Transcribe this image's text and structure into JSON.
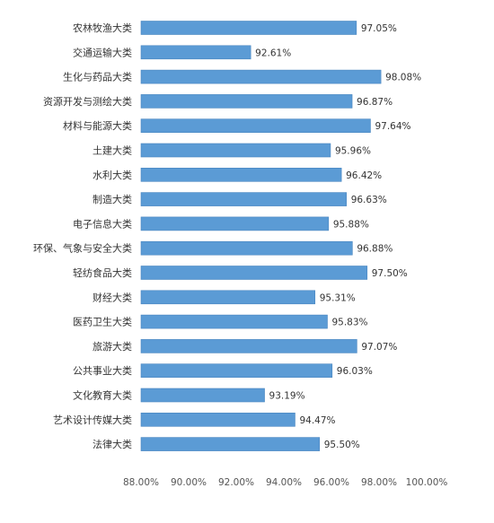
{
  "chart_data": {
    "type": "bar",
    "orientation": "horizontal",
    "categories": [
      "农林牧渔大类",
      "交通运输大类",
      "生化与药品大类",
      "资源开发与测绘大类",
      "材料与能源大类",
      "土建大类",
      "水利大类",
      "制造大类",
      "电子信息大类",
      "环保、气象与安全大类",
      "轻纺食品大类",
      "财经大类",
      "医药卫生大类",
      "旅游大类",
      "公共事业大类",
      "文化教育大类",
      "艺术设计传媒大类",
      "法律大类"
    ],
    "values": [
      97.05,
      92.61,
      98.08,
      96.87,
      97.64,
      95.96,
      96.42,
      96.63,
      95.88,
      96.88,
      97.5,
      95.31,
      95.83,
      97.07,
      96.03,
      93.19,
      94.47,
      95.5
    ],
    "value_labels": [
      "97.05%",
      "92.61%",
      "98.08%",
      "96.87%",
      "97.64%",
      "95.96%",
      "96.42%",
      "96.63%",
      "95.88%",
      "96.88%",
      "97.50%",
      "95.31%",
      "95.83%",
      "97.07%",
      "96.03%",
      "93.19%",
      "94.47%",
      "95.50%"
    ],
    "xlim": [
      88,
      100
    ],
    "x_ticks": [
      88,
      90,
      92,
      94,
      96,
      98,
      100
    ],
    "x_tick_labels": [
      "88.00%",
      "90.00%",
      "92.00%",
      "94.00%",
      "96.00%",
      "98.00%",
      "100.00%"
    ],
    "title": "",
    "xlabel": "",
    "ylabel": "",
    "grid": false,
    "legend": "none",
    "bar_color": "#5b9bd5",
    "bar_edge_color": "#4a86c0"
  }
}
